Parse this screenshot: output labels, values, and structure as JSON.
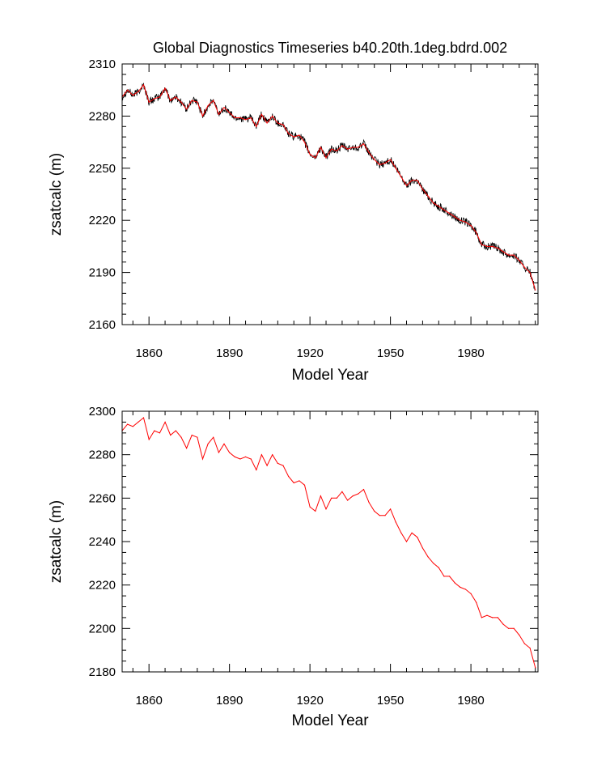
{
  "figure": {
    "title": "Global Diagnostics Timeseries b40.20th.1deg.bdrd.002"
  },
  "colors": {
    "monthly_line": "#000000",
    "annual_line": "#ff0000",
    "axes": "#000000",
    "background": "#ffffff"
  },
  "chart_data": [
    {
      "type": "line",
      "xlabel": "Model Year",
      "ylabel": "zsatcalc (m)",
      "xlim": [
        1850,
        2005
      ],
      "ylim": [
        2160,
        2310
      ],
      "xticks": [
        1860,
        1890,
        1920,
        1950,
        1980
      ],
      "yticks": [
        2160,
        2190,
        2220,
        2250,
        2280,
        2310
      ],
      "x": [
        1850,
        1852,
        1854,
        1856,
        1858,
        1860,
        1862,
        1864,
        1866,
        1868,
        1870,
        1872,
        1874,
        1876,
        1878,
        1880,
        1882,
        1884,
        1886,
        1888,
        1890,
        1892,
        1894,
        1896,
        1898,
        1900,
        1902,
        1904,
        1906,
        1908,
        1910,
        1912,
        1914,
        1916,
        1918,
        1920,
        1922,
        1924,
        1926,
        1928,
        1930,
        1932,
        1934,
        1936,
        1938,
        1940,
        1942,
        1944,
        1946,
        1948,
        1950,
        1952,
        1954,
        1956,
        1958,
        1960,
        1962,
        1964,
        1966,
        1968,
        1970,
        1972,
        1974,
        1976,
        1978,
        1980,
        1982,
        1984,
        1986,
        1988,
        1990,
        1992,
        1994,
        1996,
        1998,
        2000,
        2002,
        2004
      ],
      "series": [
        {
          "values": [
            2291,
            2295,
            2292,
            2294,
            2298,
            2288,
            2290,
            2291,
            2296,
            2289,
            2291,
            2288,
            2284,
            2289,
            2288,
            2280,
            2286,
            2289,
            2281,
            2285,
            2282,
            2279,
            2279,
            2278,
            2279,
            2274,
            2281,
            2276,
            2280,
            2276,
            2275,
            2270,
            2268,
            2269,
            2265,
            2258,
            2256,
            2262,
            2256,
            2261,
            2260,
            2263,
            2261,
            2262,
            2262,
            2264,
            2259,
            2255,
            2252,
            2253,
            2255,
            2250,
            2245,
            2240,
            2243,
            2243,
            2238,
            2234,
            2230,
            2228,
            2226,
            2224,
            2222,
            2220,
            2219,
            2217,
            2213,
            2206,
            2205,
            2205,
            2204,
            2202,
            2200,
            2200,
            2197,
            2193,
            2190,
            2180
          ]
        }
      ]
    },
    {
      "type": "line",
      "xlabel": "Model Year",
      "ylabel": "zsatcalc (m)",
      "xlim": [
        1850,
        2005
      ],
      "ylim": [
        2180,
        2300
      ],
      "xticks": [
        1860,
        1890,
        1920,
        1950,
        1980
      ],
      "yticks": [
        2180,
        2200,
        2220,
        2240,
        2260,
        2280,
        2300
      ],
      "x": [
        1850,
        1852,
        1854,
        1856,
        1858,
        1860,
        1862,
        1864,
        1866,
        1868,
        1870,
        1872,
        1874,
        1876,
        1878,
        1880,
        1882,
        1884,
        1886,
        1888,
        1890,
        1892,
        1894,
        1896,
        1898,
        1900,
        1902,
        1904,
        1906,
        1908,
        1910,
        1912,
        1914,
        1916,
        1918,
        1920,
        1922,
        1924,
        1926,
        1928,
        1930,
        1932,
        1934,
        1936,
        1938,
        1940,
        1942,
        1944,
        1946,
        1948,
        1950,
        1952,
        1954,
        1956,
        1958,
        1960,
        1962,
        1964,
        1966,
        1968,
        1970,
        1972,
        1974,
        1976,
        1978,
        1980,
        1982,
        1984,
        1986,
        1988,
        1990,
        1992,
        1994,
        1996,
        1998,
        2000,
        2002,
        2004
      ],
      "series": [
        {
          "values": [
            2291,
            2294,
            2293,
            2295,
            2297,
            2287,
            2291,
            2290,
            2295,
            2289,
            2291,
            2288,
            2283,
            2289,
            2288,
            2278,
            2285,
            2288,
            2281,
            2285,
            2281,
            2279,
            2278,
            2279,
            2278,
            2273,
            2280,
            2275,
            2280,
            2276,
            2275,
            2270,
            2267,
            2268,
            2266,
            2256,
            2254,
            2261,
            2255,
            2260,
            2260,
            2263,
            2259,
            2261,
            2262,
            2264,
            2258,
            2254,
            2252,
            2252,
            2255,
            2249,
            2244,
            2240,
            2244,
            2242,
            2237,
            2233,
            2230,
            2228,
            2224,
            2224,
            2221,
            2219,
            2218,
            2216,
            2212,
            2205,
            2206,
            2205,
            2205,
            2202,
            2200,
            2200,
            2197,
            2193,
            2191,
            2182
          ]
        }
      ]
    }
  ]
}
